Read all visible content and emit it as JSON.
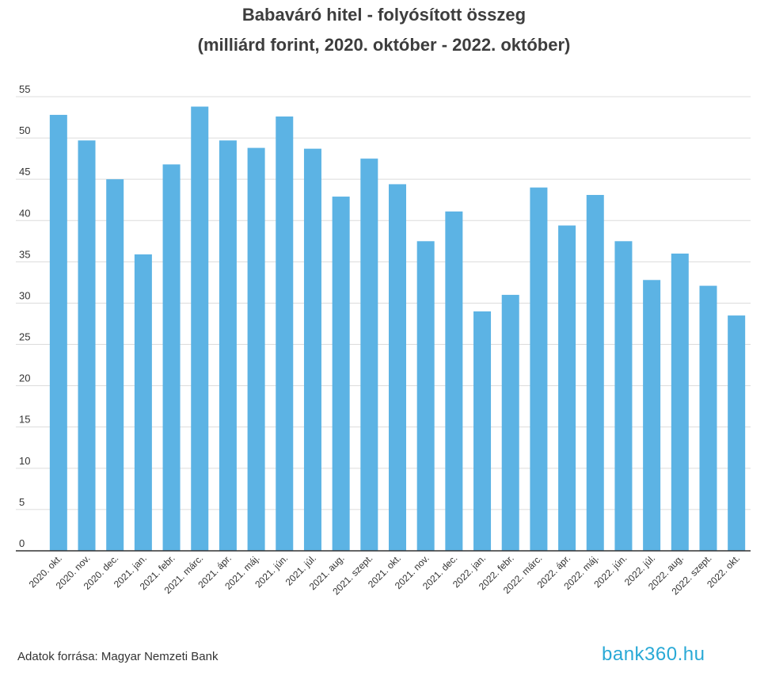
{
  "chart_data": {
    "type": "bar",
    "title": "Babaváró hitel - folyósított összeg",
    "subtitle": "(milliárd forint, 2020. október - 2022. október)",
    "categories": [
      "2020. okt.",
      "2020. nov.",
      "2020. dec.",
      "2021. jan.",
      "2021. febr.",
      "2021. márc.",
      "2021. ápr.",
      "2021. máj.",
      "2021. jún.",
      "2021. júl.",
      "2021. aug.",
      "2021. szept.",
      "2021. okt.",
      "2021. nov.",
      "2021. dec.",
      "2022. jan.",
      "2022. febr.",
      "2022. márc.",
      "2022. ápr.",
      "2022. máj.",
      "2022. jún.",
      "2022. júl.",
      "2022. aug.",
      "2022. szept.",
      "2022. okt."
    ],
    "values": [
      52.8,
      49.7,
      45.0,
      35.9,
      46.8,
      53.8,
      49.7,
      48.8,
      52.6,
      48.7,
      42.9,
      47.5,
      44.4,
      37.5,
      41.1,
      29.0,
      31.0,
      44.0,
      39.4,
      43.1,
      37.5,
      32.8,
      36.0,
      32.1,
      28.5
    ],
    "ylim": [
      0,
      55
    ],
    "yticks": [
      0,
      5,
      10,
      15,
      20,
      25,
      30,
      35,
      40,
      45,
      50,
      55
    ],
    "grid": true,
    "bar_color": "#5cb3e4"
  },
  "footer": {
    "source": "Adatok forrása: Magyar Nemzeti Bank",
    "brand": "bank360.hu"
  }
}
